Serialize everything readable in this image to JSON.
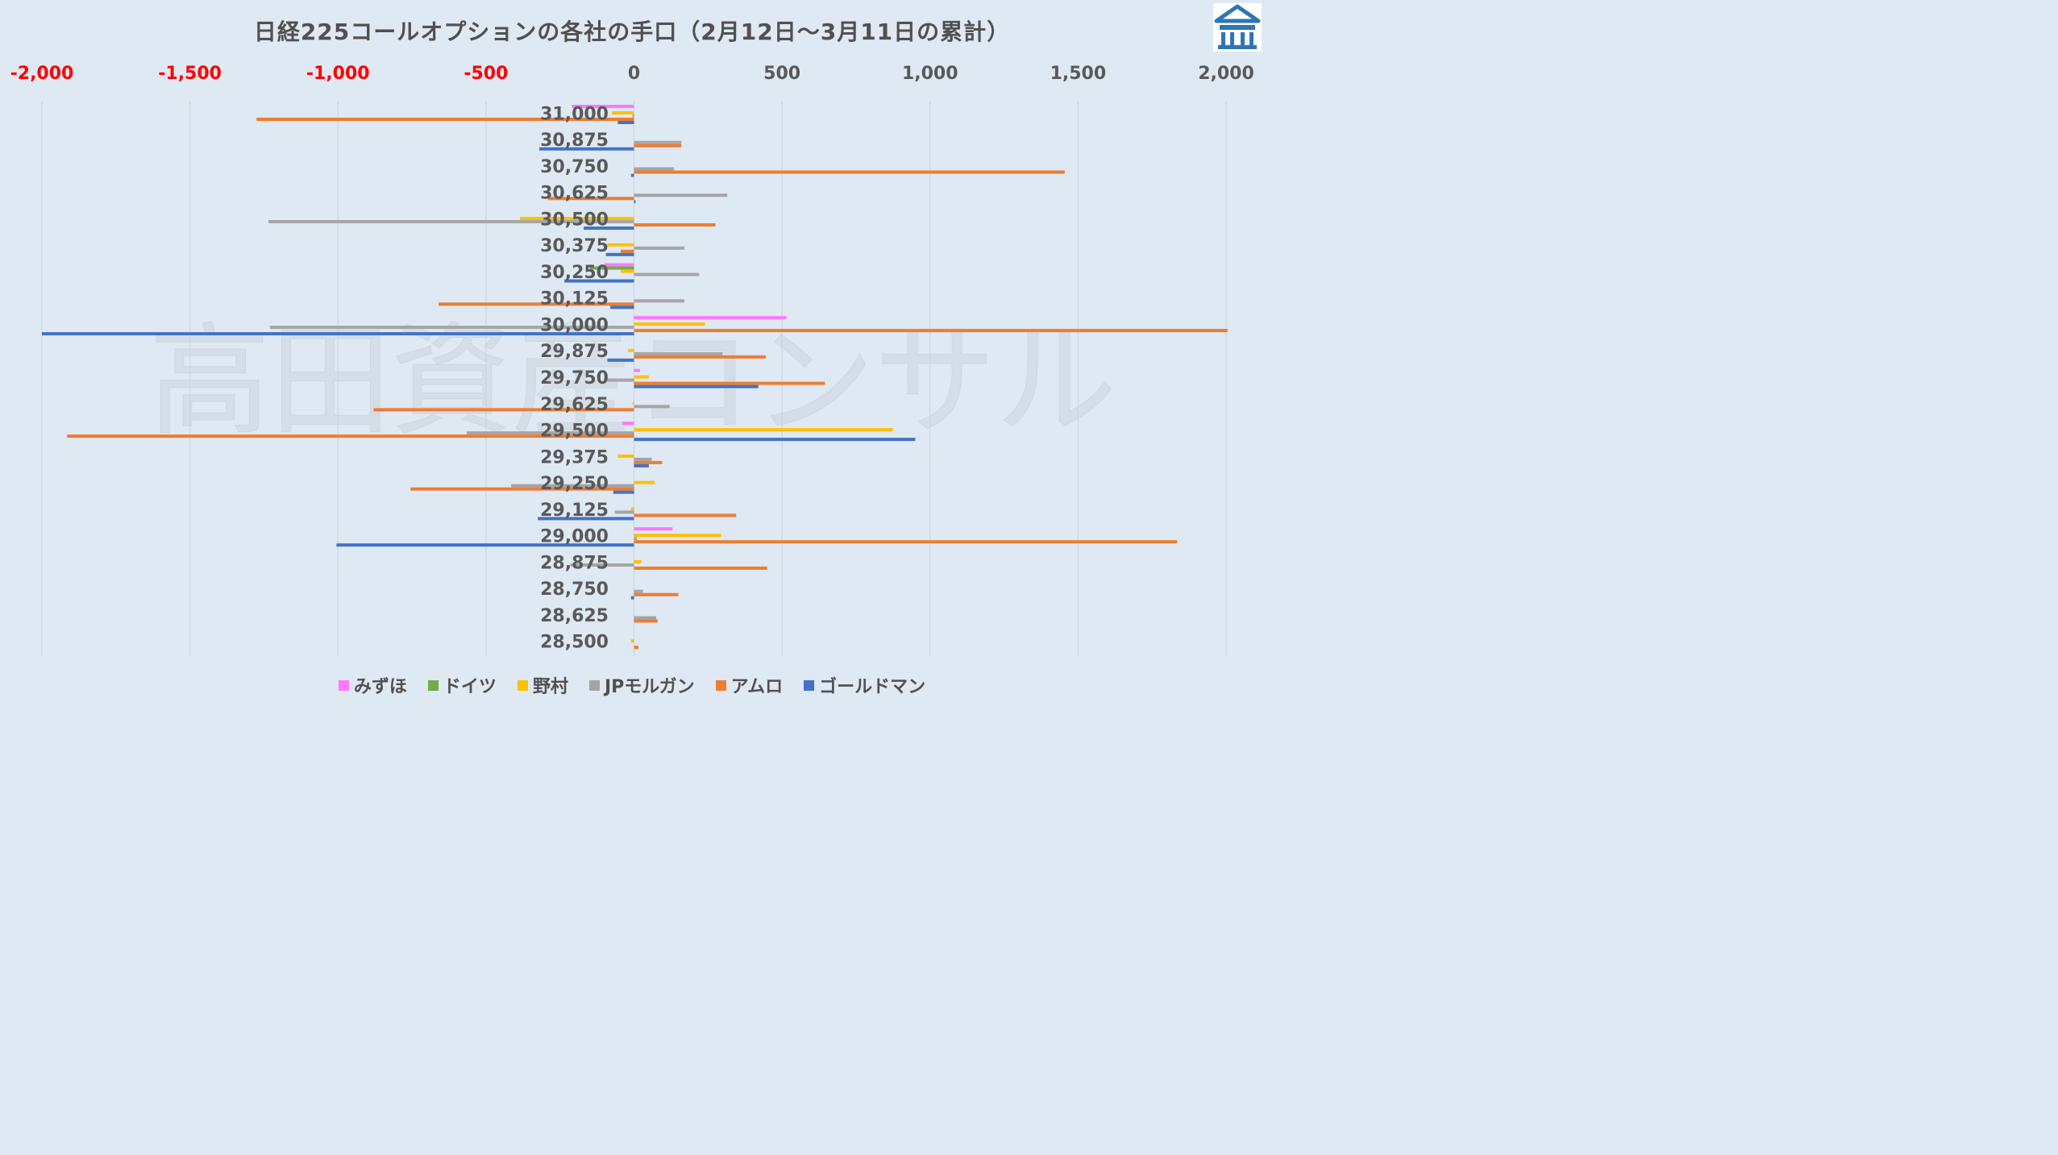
{
  "title": "日経225コールオプションの各社の手口（2月12日～3月11日の累計）",
  "logo_icon": "bank-building-icon",
  "watermark": "高田資産コンサル",
  "colors": {
    "background": "#dfe9f4",
    "negative_tick": "#ff0000",
    "axis_text": "#595959"
  },
  "chart_data": {
    "type": "bar",
    "orientation": "horizontal",
    "title": "日経225コールオプションの各社の手口（2月12日～3月11日の累計）",
    "xlabel": "",
    "ylabel": "",
    "xlim": [
      -2000,
      2000
    ],
    "x_ticks": [
      -2000,
      -1500,
      -1000,
      -500,
      0,
      500,
      1000,
      1500,
      2000
    ],
    "x_tick_labels": [
      "-2,000",
      "-1,500",
      "-1,000",
      "-500",
      "0",
      "500",
      "1,000",
      "1,500",
      "2,000"
    ],
    "grid": "vertical",
    "legend_position": "bottom",
    "categories": [
      "31,000",
      "30,875",
      "30,750",
      "30,625",
      "30,500",
      "30,375",
      "30,250",
      "30,125",
      "30,000",
      "29,875",
      "29,750",
      "29,625",
      "29,500",
      "29,375",
      "29,250",
      "29,125",
      "29,000",
      "28,875",
      "28,750",
      "28,625",
      "28,500"
    ],
    "series": [
      {
        "name": "みずほ",
        "color": "#ff77ff",
        "values": [
          -210,
          0,
          0,
          0,
          0,
          0,
          -100,
          0,
          515,
          0,
          20,
          0,
          -40,
          0,
          0,
          0,
          130,
          0,
          0,
          0,
          0
        ]
      },
      {
        "name": "ドイツ",
        "color": "#70ad47",
        "values": [
          0,
          0,
          0,
          0,
          0,
          0,
          -150,
          0,
          0,
          0,
          0,
          0,
          0,
          0,
          0,
          0,
          0,
          0,
          0,
          0,
          0
        ]
      },
      {
        "name": "野村",
        "color": "#ffc000",
        "values": [
          -75,
          0,
          0,
          0,
          -385,
          -90,
          -45,
          0,
          240,
          -20,
          50,
          -5,
          875,
          -55,
          70,
          -10,
          295,
          25,
          0,
          0,
          -10
        ]
      },
      {
        "name": "JPモルガン",
        "color": "#a5a5a5",
        "values": [
          -5,
          160,
          135,
          315,
          -1235,
          170,
          220,
          170,
          -1230,
          300,
          -90,
          120,
          -565,
          60,
          -415,
          -65,
          10,
          -215,
          30,
          75,
          0
        ]
      },
      {
        "name": "アムロ",
        "color": "#ed7d31",
        "values": [
          -1275,
          160,
          1455,
          -290,
          275,
          -45,
          0,
          -660,
          2005,
          445,
          645,
          -880,
          -1915,
          95,
          -755,
          345,
          1835,
          450,
          150,
          80,
          15
        ]
      },
      {
        "name": "ゴールドマン",
        "color": "#4472c4",
        "values": [
          -55,
          -320,
          -10,
          5,
          -170,
          -95,
          -235,
          -80,
          -2000,
          -90,
          420,
          0,
          950,
          50,
          -70,
          -325,
          -1005,
          0,
          -10,
          0,
          0
        ]
      }
    ]
  }
}
